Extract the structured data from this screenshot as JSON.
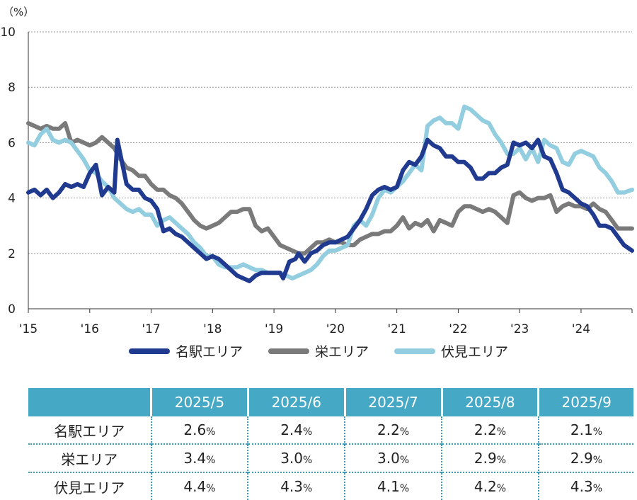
{
  "chart_data": {
    "type": "line",
    "unit_label": "（%）",
    "ylim": [
      0,
      10
    ],
    "yticks": [
      "0",
      "2",
      "4",
      "6",
      "8",
      "10"
    ],
    "xticks": [
      "'15",
      "'16",
      "'17",
      "'18",
      "'19",
      "'20",
      "'21",
      "'22",
      "'23",
      "'24"
    ],
    "xlim": [
      2015,
      2024.83
    ],
    "grid": "horizontal-dotted",
    "legend_position": "bottom",
    "series": [
      {
        "name": "名駅エリア",
        "color": "#1f3a8f",
        "points": [
          [
            2015.0,
            4.2
          ],
          [
            2015.1,
            4.3
          ],
          [
            2015.2,
            4.1
          ],
          [
            2015.3,
            4.3
          ],
          [
            2015.4,
            4.0
          ],
          [
            2015.5,
            4.2
          ],
          [
            2015.6,
            4.5
          ],
          [
            2015.7,
            4.4
          ],
          [
            2015.8,
            4.5
          ],
          [
            2015.9,
            4.4
          ],
          [
            2016.0,
            4.9
          ],
          [
            2016.1,
            5.2
          ],
          [
            2016.2,
            4.1
          ],
          [
            2016.3,
            4.4
          ],
          [
            2016.4,
            4.2
          ],
          [
            2016.45,
            6.1
          ],
          [
            2016.6,
            4.5
          ],
          [
            2016.7,
            4.3
          ],
          [
            2016.8,
            4.3
          ],
          [
            2016.9,
            4.0
          ],
          [
            2017.0,
            3.9
          ],
          [
            2017.1,
            3.6
          ],
          [
            2017.2,
            2.8
          ],
          [
            2017.3,
            2.9
          ],
          [
            2017.4,
            2.7
          ],
          [
            2017.5,
            2.6
          ],
          [
            2017.6,
            2.4
          ],
          [
            2017.7,
            2.2
          ],
          [
            2017.8,
            2.0
          ],
          [
            2017.9,
            1.8
          ],
          [
            2018.0,
            1.9
          ],
          [
            2018.1,
            1.8
          ],
          [
            2018.2,
            1.6
          ],
          [
            2018.3,
            1.4
          ],
          [
            2018.4,
            1.2
          ],
          [
            2018.5,
            1.1
          ],
          [
            2018.6,
            1.0
          ],
          [
            2018.7,
            1.2
          ],
          [
            2018.8,
            1.3
          ],
          [
            2018.9,
            1.3
          ],
          [
            2019.0,
            1.3
          ],
          [
            2019.1,
            1.3
          ],
          [
            2019.15,
            1.1
          ],
          [
            2019.25,
            1.7
          ],
          [
            2019.35,
            1.8
          ],
          [
            2019.4,
            2.0
          ],
          [
            2019.5,
            1.7
          ],
          [
            2019.6,
            2.0
          ],
          [
            2019.7,
            2.1
          ],
          [
            2019.8,
            2.3
          ],
          [
            2019.9,
            2.4
          ],
          [
            2020.0,
            2.4
          ],
          [
            2020.1,
            2.5
          ],
          [
            2020.2,
            2.6
          ],
          [
            2020.3,
            2.9
          ],
          [
            2020.4,
            3.2
          ],
          [
            2020.5,
            3.6
          ],
          [
            2020.6,
            4.1
          ],
          [
            2020.7,
            4.3
          ],
          [
            2020.8,
            4.4
          ],
          [
            2020.9,
            4.3
          ],
          [
            2021.0,
            4.4
          ],
          [
            2021.1,
            5.0
          ],
          [
            2021.2,
            5.3
          ],
          [
            2021.3,
            5.2
          ],
          [
            2021.4,
            5.5
          ],
          [
            2021.5,
            6.1
          ],
          [
            2021.6,
            5.9
          ],
          [
            2021.7,
            5.8
          ],
          [
            2021.8,
            5.5
          ],
          [
            2021.9,
            5.5
          ],
          [
            2022.0,
            5.3
          ],
          [
            2022.1,
            5.3
          ],
          [
            2022.2,
            5.1
          ],
          [
            2022.3,
            4.7
          ],
          [
            2022.4,
            4.7
          ],
          [
            2022.5,
            4.9
          ],
          [
            2022.6,
            4.9
          ],
          [
            2022.7,
            5.1
          ],
          [
            2022.8,
            5.2
          ],
          [
            2022.9,
            6.0
          ],
          [
            2023.0,
            5.9
          ],
          [
            2023.1,
            6.0
          ],
          [
            2023.2,
            5.8
          ],
          [
            2023.3,
            6.1
          ],
          [
            2023.4,
            5.5
          ],
          [
            2023.5,
            5.4
          ],
          [
            2023.6,
            4.9
          ],
          [
            2023.7,
            4.3
          ],
          [
            2023.8,
            4.2
          ],
          [
            2023.9,
            4.0
          ],
          [
            2024.0,
            3.8
          ],
          [
            2024.1,
            3.7
          ],
          [
            2024.2,
            3.4
          ],
          [
            2024.3,
            3.0
          ],
          [
            2024.4,
            3.0
          ],
          [
            2024.5,
            2.9
          ],
          [
            2024.6,
            2.6
          ],
          [
            2024.7,
            2.3
          ],
          [
            2024.83,
            2.1
          ]
        ]
      },
      {
        "name": "栄エリア",
        "color": "#7a7a7a",
        "points": [
          [
            2015.0,
            6.7
          ],
          [
            2015.1,
            6.6
          ],
          [
            2015.2,
            6.5
          ],
          [
            2015.3,
            6.6
          ],
          [
            2015.4,
            6.5
          ],
          [
            2015.5,
            6.5
          ],
          [
            2015.6,
            6.7
          ],
          [
            2015.7,
            6.0
          ],
          [
            2015.8,
            6.1
          ],
          [
            2015.9,
            6.0
          ],
          [
            2016.0,
            5.9
          ],
          [
            2016.1,
            6.0
          ],
          [
            2016.2,
            6.2
          ],
          [
            2016.3,
            6.0
          ],
          [
            2016.4,
            5.8
          ],
          [
            2016.5,
            5.4
          ],
          [
            2016.6,
            5.1
          ],
          [
            2016.7,
            5.0
          ],
          [
            2016.8,
            4.8
          ],
          [
            2016.9,
            4.8
          ],
          [
            2017.0,
            4.5
          ],
          [
            2017.1,
            4.3
          ],
          [
            2017.2,
            4.3
          ],
          [
            2017.3,
            4.1
          ],
          [
            2017.4,
            4.0
          ],
          [
            2017.5,
            3.8
          ],
          [
            2017.6,
            3.5
          ],
          [
            2017.7,
            3.2
          ],
          [
            2017.8,
            3.0
          ],
          [
            2017.9,
            2.9
          ],
          [
            2018.0,
            3.0
          ],
          [
            2018.1,
            3.1
          ],
          [
            2018.2,
            3.3
          ],
          [
            2018.3,
            3.5
          ],
          [
            2018.4,
            3.5
          ],
          [
            2018.5,
            3.6
          ],
          [
            2018.6,
            3.6
          ],
          [
            2018.7,
            3.0
          ],
          [
            2018.8,
            2.8
          ],
          [
            2018.9,
            2.9
          ],
          [
            2019.0,
            2.6
          ],
          [
            2019.1,
            2.3
          ],
          [
            2019.2,
            2.2
          ],
          [
            2019.3,
            2.1
          ],
          [
            2019.4,
            2.0
          ],
          [
            2019.5,
            2.0
          ],
          [
            2019.6,
            2.2
          ],
          [
            2019.7,
            2.4
          ],
          [
            2019.8,
            2.4
          ],
          [
            2019.9,
            2.5
          ],
          [
            2020.0,
            2.4
          ],
          [
            2020.1,
            2.4
          ],
          [
            2020.2,
            2.3
          ],
          [
            2020.3,
            2.3
          ],
          [
            2020.4,
            2.5
          ],
          [
            2020.5,
            2.6
          ],
          [
            2020.6,
            2.7
          ],
          [
            2020.7,
            2.7
          ],
          [
            2020.8,
            2.8
          ],
          [
            2020.9,
            2.8
          ],
          [
            2021.0,
            3.0
          ],
          [
            2021.1,
            3.3
          ],
          [
            2021.2,
            2.9
          ],
          [
            2021.3,
            3.1
          ],
          [
            2021.4,
            3.0
          ],
          [
            2021.5,
            3.2
          ],
          [
            2021.6,
            2.8
          ],
          [
            2021.7,
            3.2
          ],
          [
            2021.8,
            3.1
          ],
          [
            2021.9,
            3.0
          ],
          [
            2022.0,
            3.5
          ],
          [
            2022.1,
            3.7
          ],
          [
            2022.2,
            3.7
          ],
          [
            2022.3,
            3.6
          ],
          [
            2022.4,
            3.5
          ],
          [
            2022.5,
            3.6
          ],
          [
            2022.6,
            3.5
          ],
          [
            2022.7,
            3.3
          ],
          [
            2022.8,
            3.1
          ],
          [
            2022.9,
            4.1
          ],
          [
            2023.0,
            4.2
          ],
          [
            2023.1,
            4.0
          ],
          [
            2023.2,
            3.9
          ],
          [
            2023.3,
            4.0
          ],
          [
            2023.4,
            4.0
          ],
          [
            2023.5,
            4.1
          ],
          [
            2023.6,
            3.5
          ],
          [
            2023.7,
            3.7
          ],
          [
            2023.8,
            3.8
          ],
          [
            2023.9,
            3.7
          ],
          [
            2024.0,
            3.7
          ],
          [
            2024.1,
            3.6
          ],
          [
            2024.2,
            3.8
          ],
          [
            2024.3,
            3.6
          ],
          [
            2024.4,
            3.5
          ],
          [
            2024.5,
            3.2
          ],
          [
            2024.6,
            2.9
          ],
          [
            2024.7,
            2.9
          ],
          [
            2024.83,
            2.9
          ]
        ]
      },
      {
        "name": "伏見エリア",
        "color": "#93cde0",
        "points": [
          [
            2015.0,
            6.0
          ],
          [
            2015.1,
            5.9
          ],
          [
            2015.2,
            6.3
          ],
          [
            2015.3,
            6.5
          ],
          [
            2015.4,
            6.1
          ],
          [
            2015.5,
            6.0
          ],
          [
            2015.6,
            6.1
          ],
          [
            2015.7,
            6.0
          ],
          [
            2015.8,
            5.7
          ],
          [
            2015.9,
            5.4
          ],
          [
            2016.0,
            5.0
          ],
          [
            2016.1,
            4.9
          ],
          [
            2016.2,
            4.6
          ],
          [
            2016.3,
            4.4
          ],
          [
            2016.4,
            4.0
          ],
          [
            2016.5,
            3.8
          ],
          [
            2016.6,
            3.6
          ],
          [
            2016.7,
            3.5
          ],
          [
            2016.8,
            3.6
          ],
          [
            2016.9,
            3.4
          ],
          [
            2017.0,
            3.4
          ],
          [
            2017.1,
            3.0
          ],
          [
            2017.2,
            3.2
          ],
          [
            2017.3,
            3.3
          ],
          [
            2017.4,
            3.1
          ],
          [
            2017.5,
            2.9
          ],
          [
            2017.6,
            2.7
          ],
          [
            2017.7,
            2.4
          ],
          [
            2017.8,
            2.2
          ],
          [
            2017.9,
            1.9
          ],
          [
            2018.0,
            1.9
          ],
          [
            2018.1,
            1.6
          ],
          [
            2018.2,
            1.5
          ],
          [
            2018.3,
            1.5
          ],
          [
            2018.4,
            1.5
          ],
          [
            2018.5,
            1.6
          ],
          [
            2018.6,
            1.5
          ],
          [
            2018.7,
            1.4
          ],
          [
            2018.8,
            1.4
          ],
          [
            2018.9,
            1.3
          ],
          [
            2019.0,
            1.3
          ],
          [
            2019.1,
            1.3
          ],
          [
            2019.2,
            1.2
          ],
          [
            2019.3,
            1.1
          ],
          [
            2019.4,
            1.2
          ],
          [
            2019.5,
            1.3
          ],
          [
            2019.6,
            1.4
          ],
          [
            2019.7,
            1.6
          ],
          [
            2019.8,
            1.9
          ],
          [
            2019.9,
            2.1
          ],
          [
            2020.0,
            2.1
          ],
          [
            2020.1,
            2.2
          ],
          [
            2020.2,
            2.3
          ],
          [
            2020.3,
            3.0
          ],
          [
            2020.4,
            3.2
          ],
          [
            2020.5,
            3.0
          ],
          [
            2020.6,
            3.4
          ],
          [
            2020.7,
            4.0
          ],
          [
            2020.8,
            4.3
          ],
          [
            2020.9,
            4.2
          ],
          [
            2021.0,
            4.4
          ],
          [
            2021.1,
            4.6
          ],
          [
            2021.2,
            4.9
          ],
          [
            2021.3,
            5.2
          ],
          [
            2021.4,
            5.0
          ],
          [
            2021.5,
            6.6
          ],
          [
            2021.6,
            6.8
          ],
          [
            2021.7,
            6.9
          ],
          [
            2021.8,
            6.7
          ],
          [
            2021.9,
            6.7
          ],
          [
            2022.0,
            6.5
          ],
          [
            2022.1,
            7.3
          ],
          [
            2022.2,
            7.2
          ],
          [
            2022.3,
            7.0
          ],
          [
            2022.4,
            6.8
          ],
          [
            2022.5,
            6.7
          ],
          [
            2022.6,
            6.3
          ],
          [
            2022.7,
            6.0
          ],
          [
            2022.8,
            5.6
          ],
          [
            2022.9,
            5.6
          ],
          [
            2023.0,
            5.8
          ],
          [
            2023.1,
            5.4
          ],
          [
            2023.2,
            5.8
          ],
          [
            2023.3,
            5.3
          ],
          [
            2023.4,
            6.1
          ],
          [
            2023.5,
            5.9
          ],
          [
            2023.6,
            5.8
          ],
          [
            2023.7,
            5.3
          ],
          [
            2023.8,
            5.2
          ],
          [
            2023.9,
            5.6
          ],
          [
            2024.0,
            5.7
          ],
          [
            2024.1,
            5.6
          ],
          [
            2024.2,
            5.5
          ],
          [
            2024.3,
            5.1
          ],
          [
            2024.4,
            4.9
          ],
          [
            2024.5,
            4.6
          ],
          [
            2024.6,
            4.2
          ],
          [
            2024.7,
            4.2
          ],
          [
            2024.83,
            4.3
          ]
        ]
      }
    ]
  },
  "table": {
    "headers": [
      "",
      "2025/5",
      "2025/6",
      "2025/7",
      "2025/8",
      "2025/9"
    ],
    "rows": [
      {
        "label": "名駅エリア",
        "values": [
          "2.6",
          "2.4",
          "2.2",
          "2.2",
          "2.1"
        ]
      },
      {
        "label": "栄エリア",
        "values": [
          "3.4",
          "3.0",
          "3.0",
          "2.9",
          "2.9"
        ]
      },
      {
        "label": "伏見エリア",
        "values": [
          "4.4",
          "4.3",
          "4.1",
          "4.2",
          "4.3"
        ]
      }
    ],
    "unit": "%"
  }
}
